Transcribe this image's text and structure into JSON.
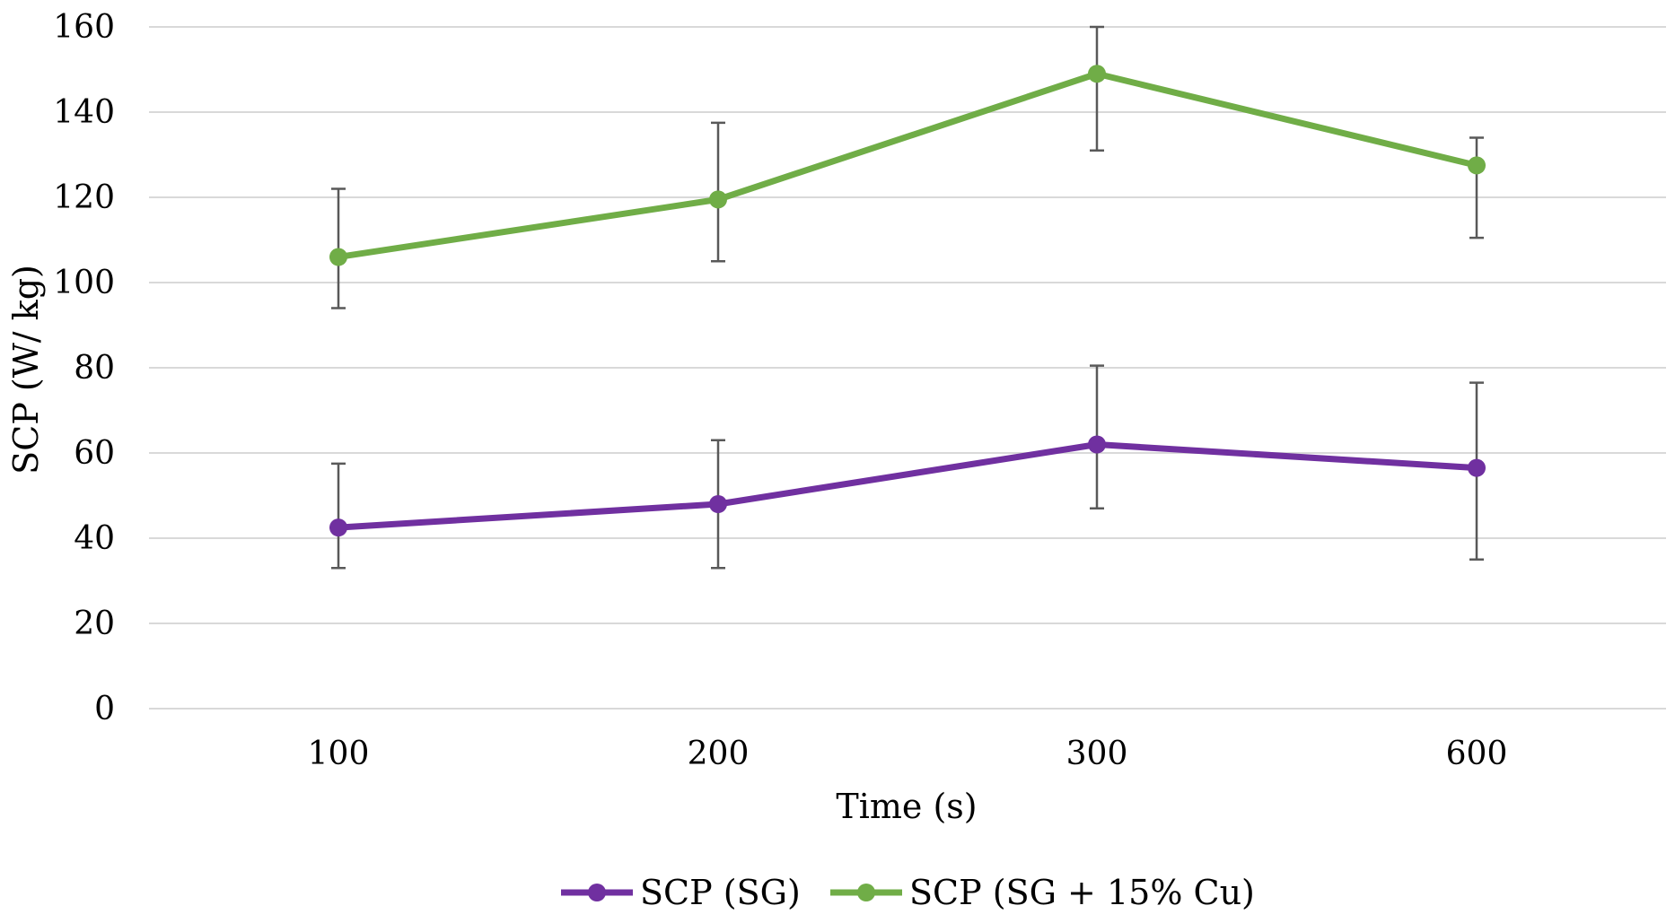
{
  "chart_data": {
    "type": "line",
    "title": "",
    "xlabel": "Time (s)",
    "ylabel": "SCP (W/ kg)",
    "categories": [
      "100",
      "200",
      "300",
      "600"
    ],
    "ylim": [
      0,
      160
    ],
    "yticks": [
      0,
      20,
      40,
      60,
      80,
      100,
      120,
      140,
      160
    ],
    "grid": true,
    "legend_position": "bottom",
    "series": [
      {
        "name": "SCP (SG)",
        "color": "#7030a0",
        "values": [
          42.5,
          48,
          62,
          56.5
        ],
        "err_high": [
          57.5,
          63,
          80.5,
          76.5
        ],
        "err_low": [
          33,
          33,
          47,
          35
        ]
      },
      {
        "name": "SCP (SG + 15% Cu)",
        "color": "#70ad47",
        "values": [
          106,
          119.5,
          149,
          127.5
        ],
        "err_high": [
          122,
          137.5,
          160,
          134
        ],
        "err_low": [
          94,
          105,
          131,
          110.5
        ]
      }
    ]
  }
}
